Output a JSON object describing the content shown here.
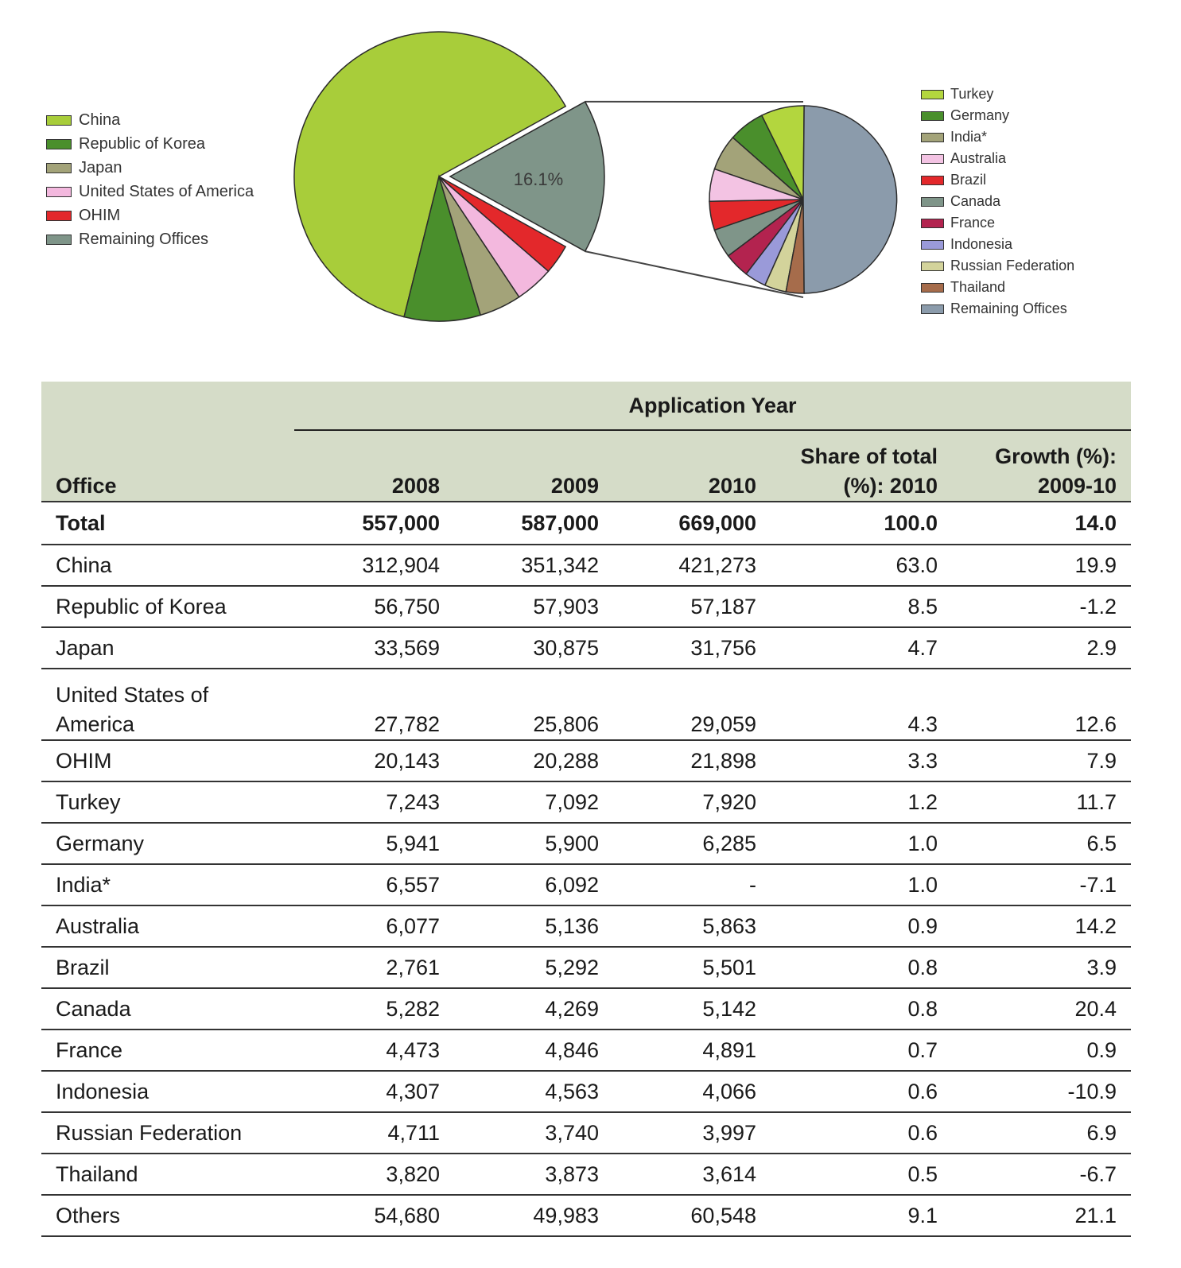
{
  "chart_data": {
    "type": "pie",
    "main_pie": {
      "slices": [
        {
          "label": "China",
          "value": 63.0,
          "color": "#a8cd3a"
        },
        {
          "label": "Republic of Korea",
          "value": 8.5,
          "color": "#4a8f2c"
        },
        {
          "label": "Japan",
          "value": 4.7,
          "color": "#a3a379"
        },
        {
          "label": "United States of America",
          "value": 4.3,
          "color": "#f3b8de"
        },
        {
          "label": "OHIM",
          "value": 3.3,
          "color": "#e3282b"
        },
        {
          "label": "Remaining Offices",
          "value": 16.1,
          "color": "#7f9589",
          "exploded": true,
          "data_label": "16.1%"
        }
      ]
    },
    "sub_pie": {
      "slices": [
        {
          "label": "Turkey",
          "value": 1.2,
          "color": "#b3d63e"
        },
        {
          "label": "Germany",
          "value": 1.0,
          "color": "#4a8f2c"
        },
        {
          "label": "India*",
          "value": 1.0,
          "color": "#a3a379"
        },
        {
          "label": "Australia",
          "value": 0.9,
          "color": "#f3c3e3"
        },
        {
          "label": "Brazil",
          "value": 0.8,
          "color": "#e3282b"
        },
        {
          "label": "Canada",
          "value": 0.8,
          "color": "#7f9589"
        },
        {
          "label": "France",
          "value": 0.7,
          "color": "#b3234f"
        },
        {
          "label": "Indonesia",
          "value": 0.6,
          "color": "#9a9ad9"
        },
        {
          "label": "Russian Federation",
          "value": 0.6,
          "color": "#d3d39b"
        },
        {
          "label": "Thailand",
          "value": 0.5,
          "color": "#a66c4b"
        },
        {
          "label": "Remaining Offices",
          "value": 8.0,
          "color": "#8b9bab"
        }
      ]
    }
  },
  "legend_main": [
    "China",
    "Republic of Korea",
    "Japan",
    "United States of America",
    "OHIM",
    "Remaining Offices"
  ],
  "legend_sub": [
    "Turkey",
    "Germany",
    "India*",
    "Australia",
    "Brazil",
    "Canada",
    "France",
    "Indonesia",
    "Russian Federation",
    "Thailand",
    "Remaining Offices"
  ],
  "table": {
    "group_header": "Application Year",
    "headers": {
      "office": "Office",
      "y2008": "2008",
      "y2009": "2009",
      "y2010": "2010",
      "share_line1": "Share of total",
      "share_line2": "(%): 2010",
      "growth_line1": "Growth (%):",
      "growth_line2": "2009-10"
    },
    "total": {
      "office": "Total",
      "y2008": "557,000",
      "y2009": "587,000",
      "y2010": "669,000",
      "share": "100.0",
      "growth": "14.0"
    },
    "rows": [
      {
        "office": "China",
        "y2008": "312,904",
        "y2009": "351,342",
        "y2010": "421,273",
        "share": "63.0",
        "growth": "19.9"
      },
      {
        "office": "Republic of Korea",
        "y2008": "56,750",
        "y2009": "57,903",
        "y2010": "57,187",
        "share": "8.5",
        "growth": "-1.2"
      },
      {
        "office": "Japan",
        "y2008": "33,569",
        "y2009": "30,875",
        "y2010": "31,756",
        "share": "4.7",
        "growth": "2.9"
      },
      {
        "office_line1": "United States of",
        "office_line2": "America",
        "y2008": "27,782",
        "y2009": "25,806",
        "y2010": "29,059",
        "share": "4.3",
        "growth": "12.6"
      },
      {
        "office": "OHIM",
        "y2008": "20,143",
        "y2009": "20,288",
        "y2010": "21,898",
        "share": "3.3",
        "growth": "7.9"
      },
      {
        "office": "Turkey",
        "y2008": "7,243",
        "y2009": "7,092",
        "y2010": "7,920",
        "share": "1.2",
        "growth": "11.7"
      },
      {
        "office": "Germany",
        "y2008": "5,941",
        "y2009": "5,900",
        "y2010": "6,285",
        "share": "1.0",
        "growth": "6.5"
      },
      {
        "office": "India*",
        "y2008": "6,557",
        "y2009": "6,092",
        "y2010": "-",
        "share": "1.0",
        "growth": "-7.1"
      },
      {
        "office": "Australia",
        "y2008": "6,077",
        "y2009": "5,136",
        "y2010": "5,863",
        "share": "0.9",
        "growth": "14.2"
      },
      {
        "office": "Brazil",
        "y2008": "2,761",
        "y2009": "5,292",
        "y2010": "5,501",
        "share": "0.8",
        "growth": "3.9"
      },
      {
        "office": "Canada",
        "y2008": "5,282",
        "y2009": "4,269",
        "y2010": "5,142",
        "share": "0.8",
        "growth": "20.4"
      },
      {
        "office": "France",
        "y2008": "4,473",
        "y2009": "4,846",
        "y2010": "4,891",
        "share": "0.7",
        "growth": "0.9"
      },
      {
        "office": "Indonesia",
        "y2008": "4,307",
        "y2009": "4,563",
        "y2010": "4,066",
        "share": "0.6",
        "growth": "-10.9"
      },
      {
        "office": "Russian Federation",
        "y2008": "4,711",
        "y2009": "3,740",
        "y2010": "3,997",
        "share": "0.6",
        "growth": "6.9"
      },
      {
        "office": "Thailand",
        "y2008": "3,820",
        "y2009": "3,873",
        "y2010": "3,614",
        "share": "0.5",
        "growth": "-6.7"
      },
      {
        "office": "Others",
        "y2008": "54,680",
        "y2009": "49,983",
        "y2010": "60,548",
        "share": "9.1",
        "growth": "21.1"
      }
    ]
  }
}
